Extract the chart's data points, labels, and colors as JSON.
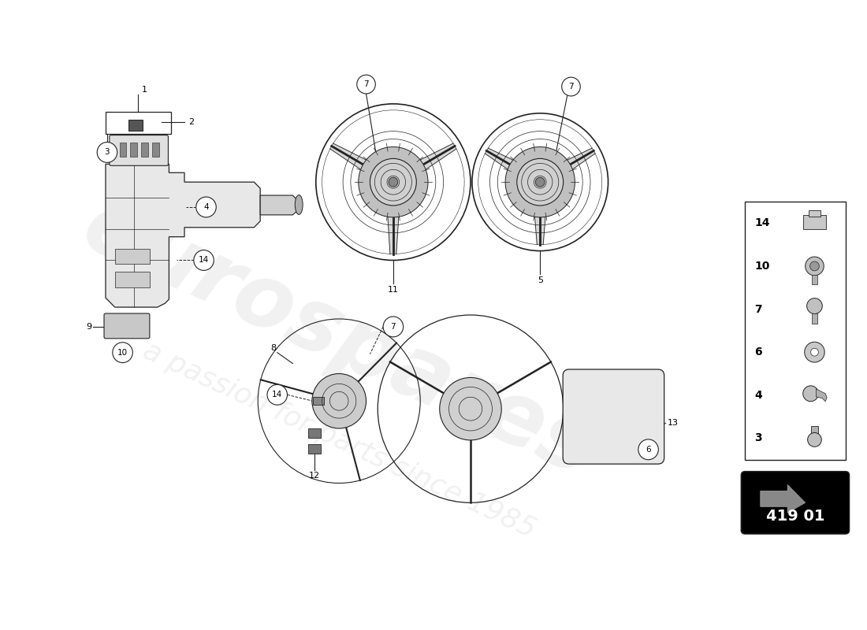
{
  "bg_color": "#ffffff",
  "diagram_code": "419 01",
  "part_numbers_in_legend": [
    "14",
    "10",
    "7",
    "6",
    "4",
    "3"
  ],
  "line_color": "#222222",
  "watermark_color_main": "#cccccc",
  "watermark_alpha": 0.28
}
